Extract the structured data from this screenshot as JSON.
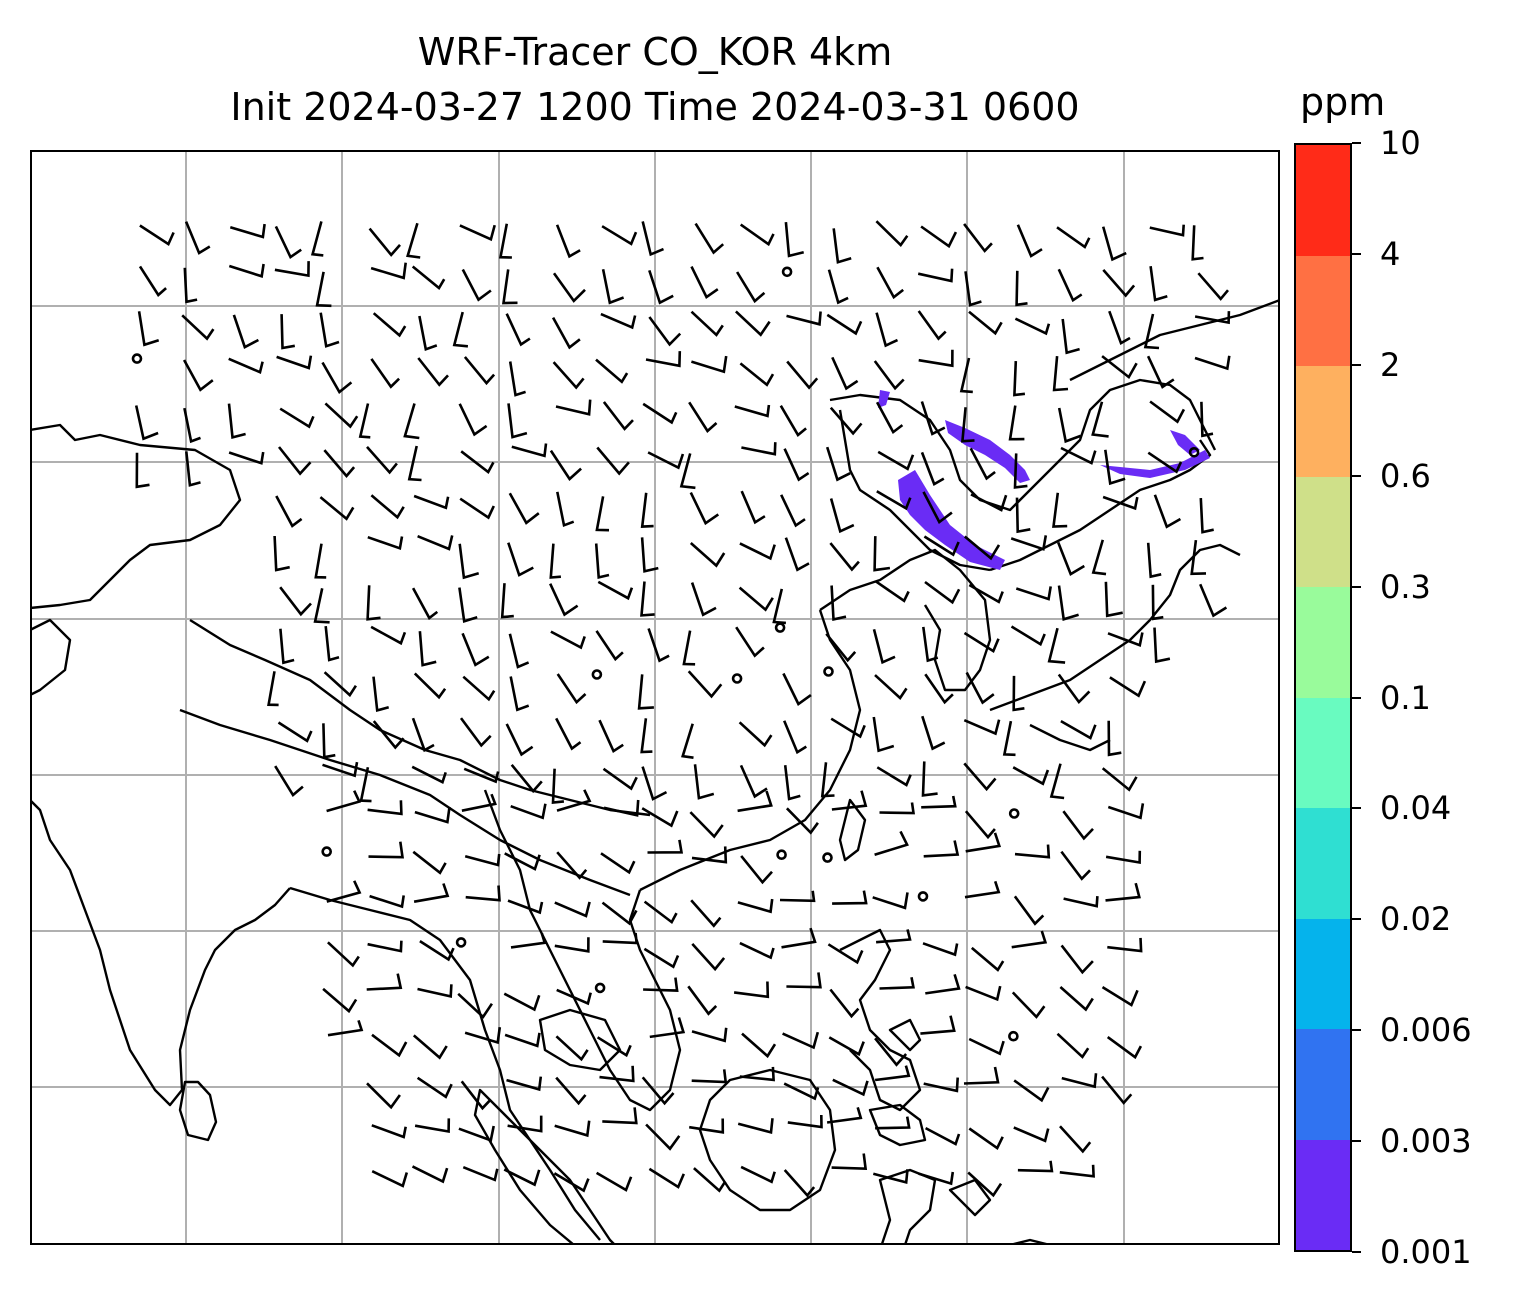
{
  "title": {
    "line1": "WRF-Tracer CO_KOR 4km",
    "line2": "Init 2024-03-27 1200 Time 2024-03-31 0600"
  },
  "colorbar": {
    "unit": "ppm",
    "ticks": [
      "0.001",
      "0.003",
      "0.006",
      "0.02",
      "0.04",
      "0.1",
      "0.3",
      "0.6",
      "2",
      "4",
      "10"
    ],
    "colors": [
      "#6a2cf5",
      "#3073f1",
      "#05b3ec",
      "#2fdfd2",
      "#69fbc0",
      "#99fb9b",
      "#cfe089",
      "#feb05f",
      "#ff7043",
      "#ff2b18"
    ]
  },
  "map": {
    "frame_color": "#000000",
    "grid_color": "#b0b0b0",
    "coastline_color": "#000000",
    "tracer_color": "#6a2cf5"
  }
}
